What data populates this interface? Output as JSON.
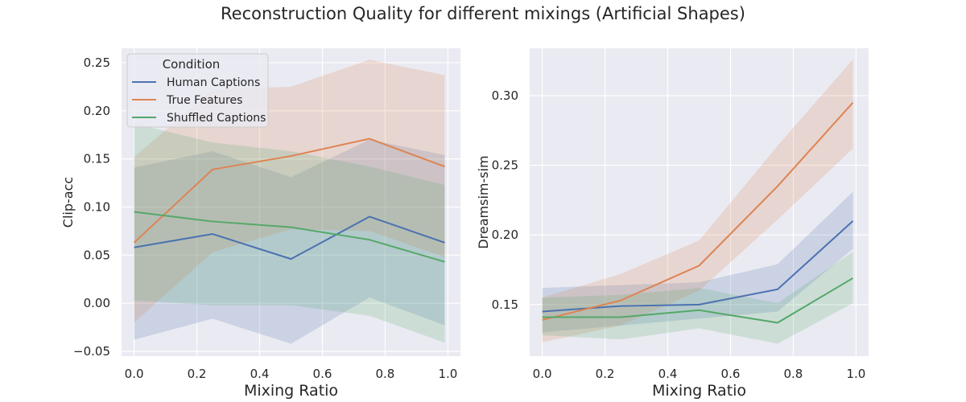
{
  "figure": {
    "title": "Reconstruction Quality for different mixings (Artificial Shapes)"
  },
  "chart_data": [
    {
      "type": "line",
      "xlabel": "Mixing Ratio",
      "ylabel": "Clip-acc",
      "xlim": [
        -0.04,
        1.04
      ],
      "ylim": [
        -0.055,
        0.265
      ],
      "xticks": [
        "0.0",
        "0.2",
        "0.4",
        "0.6",
        "0.8",
        "1.0"
      ],
      "yticks": [
        "−0.05",
        "0.00",
        "0.05",
        "0.10",
        "0.15",
        "0.20",
        "0.25"
      ],
      "grid": true,
      "legend": {
        "title": "Condition",
        "placement": "upper-left"
      },
      "x": [
        0.0,
        0.25,
        0.5,
        0.75,
        0.99
      ],
      "series": [
        {
          "name": "Human Captions",
          "color": "#4c72b0",
          "values": [
            0.058,
            0.072,
            0.046,
            0.09,
            0.063
          ],
          "ci_low": [
            -0.038,
            -0.016,
            -0.042,
            0.006,
            -0.023
          ],
          "ci_high": [
            0.141,
            0.158,
            0.131,
            0.17,
            0.154
          ]
        },
        {
          "name": "True Features",
          "color": "#dd8452",
          "values": [
            0.063,
            0.139,
            0.153,
            0.171,
            0.142
          ],
          "ci_low": [
            -0.02,
            0.053,
            0.077,
            0.075,
            0.048
          ],
          "ci_high": [
            0.152,
            0.222,
            0.225,
            0.253,
            0.237
          ]
        },
        {
          "name": "Shuffled Captions",
          "color": "#55a868",
          "values": [
            0.095,
            0.085,
            0.079,
            0.066,
            0.043
          ],
          "ci_low": [
            0.003,
            -0.002,
            -0.002,
            -0.013,
            -0.041
          ],
          "ci_high": [
            0.187,
            0.167,
            0.158,
            0.142,
            0.123
          ]
        }
      ]
    },
    {
      "type": "line",
      "xlabel": "Mixing Ratio",
      "ylabel": "Dreamsim-sim",
      "xlim": [
        -0.04,
        1.04
      ],
      "ylim": [
        0.113,
        0.334
      ],
      "xticks": [
        "0.0",
        "0.2",
        "0.4",
        "0.6",
        "0.8",
        "1.0"
      ],
      "yticks": [
        "0.15",
        "0.20",
        "0.25",
        "0.30"
      ],
      "grid": true,
      "x": [
        0.0,
        0.25,
        0.5,
        0.75,
        0.99
      ],
      "series": [
        {
          "name": "Human Captions",
          "color": "#4c72b0",
          "values": [
            0.145,
            0.149,
            0.15,
            0.161,
            0.21
          ],
          "ci_low": [
            0.13,
            0.135,
            0.14,
            0.145,
            0.19
          ],
          "ci_high": [
            0.162,
            0.164,
            0.166,
            0.179,
            0.231
          ]
        },
        {
          "name": "True Features",
          "color": "#dd8452",
          "values": [
            0.139,
            0.153,
            0.178,
            0.235,
            0.295
          ],
          "ci_low": [
            0.123,
            0.135,
            0.16,
            0.211,
            0.262
          ],
          "ci_high": [
            0.155,
            0.172,
            0.196,
            0.264,
            0.326
          ]
        },
        {
          "name": "Shuffled Captions",
          "color": "#55a868",
          "values": [
            0.141,
            0.141,
            0.146,
            0.137,
            0.169
          ],
          "ci_low": [
            0.128,
            0.125,
            0.133,
            0.122,
            0.151
          ],
          "ci_high": [
            0.155,
            0.157,
            0.162,
            0.151,
            0.188
          ]
        }
      ]
    }
  ]
}
